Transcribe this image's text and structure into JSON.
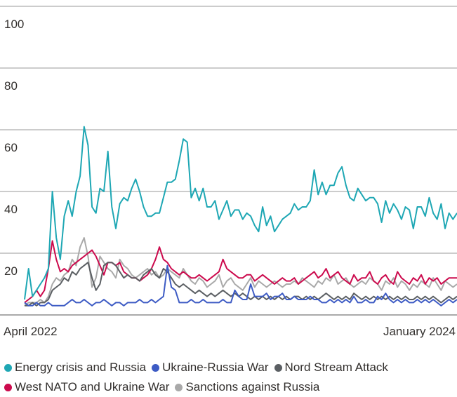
{
  "chart_data": {
    "type": "line",
    "categories": [
      "April 2022",
      null,
      null,
      null,
      null,
      null,
      null,
      null,
      null,
      null,
      null,
      null,
      null,
      null,
      null,
      null,
      null,
      null,
      null,
      null,
      null,
      null,
      null,
      null,
      null,
      null,
      null,
      null,
      null,
      null,
      null,
      null,
      null,
      null,
      null,
      null,
      null,
      null,
      null,
      null,
      null,
      null,
      null,
      null,
      null,
      null,
      null,
      null,
      null,
      null,
      null,
      null,
      null,
      null,
      null,
      null,
      null,
      null,
      null,
      null,
      null,
      null,
      null,
      null,
      null,
      null,
      null,
      null,
      null,
      null,
      null,
      null,
      null,
      null,
      null,
      null,
      null,
      null,
      null,
      null,
      null,
      null,
      null,
      null,
      null,
      null,
      null,
      null,
      null,
      null,
      null,
      null,
      null,
      null,
      null,
      null,
      null,
      null,
      null,
      null,
      null,
      null,
      null,
      null,
      null,
      null,
      null,
      null,
      null,
      "January 2024"
    ],
    "ylim": [
      0,
      100
    ],
    "yticks": [
      20,
      40,
      60,
      80,
      100
    ],
    "grid": true,
    "series": [
      {
        "name": "Energy crisis and Russia",
        "color": "#1ea7b4",
        "values": [
          5,
          15,
          6,
          8,
          10,
          12,
          15,
          40,
          25,
          18,
          32,
          37,
          32,
          40,
          45,
          61,
          55,
          35,
          33,
          41,
          40,
          53,
          35,
          28,
          36,
          38,
          37,
          41,
          44,
          40,
          35,
          32,
          32,
          33,
          33,
          38,
          43,
          43,
          44,
          50,
          57,
          56,
          38,
          41,
          37,
          41,
          35,
          35,
          37,
          31,
          34,
          37,
          32,
          34,
          34,
          31,
          33,
          32,
          29,
          27,
          35,
          29,
          32,
          27,
          29,
          31,
          32,
          33,
          36,
          34,
          35,
          35,
          37,
          47,
          39,
          43,
          39,
          42,
          42,
          46,
          48,
          42,
          38,
          37,
          41,
          39,
          37,
          38,
          38,
          36,
          30,
          37,
          33,
          36,
          34,
          31,
          35,
          34,
          28,
          35,
          35,
          32,
          38,
          33,
          31,
          36,
          28,
          33,
          31,
          33
        ]
      },
      {
        "name": "Ukraine-Russia War",
        "color": "#3d5bc4",
        "values": [
          4,
          3,
          3,
          4,
          3,
          3,
          4,
          3,
          3,
          3,
          3,
          4,
          5,
          4,
          4,
          5,
          4,
          3,
          4,
          4,
          5,
          4,
          3,
          4,
          4,
          3,
          4,
          4,
          4,
          5,
          4,
          4,
          5,
          4,
          5,
          6,
          16,
          9,
          8,
          4,
          4,
          4,
          5,
          4,
          4,
          5,
          4,
          4,
          4,
          4,
          5,
          4,
          4,
          8,
          6,
          5,
          5,
          10,
          6,
          6,
          6,
          7,
          5,
          6,
          6,
          7,
          5,
          5,
          6,
          5,
          5,
          5,
          6,
          5,
          5,
          4,
          4,
          5,
          4,
          5,
          4,
          5,
          4,
          6,
          4,
          4,
          5,
          4,
          4,
          6,
          5,
          7,
          5,
          4,
          5,
          4,
          5,
          4,
          4,
          5,
          4,
          5,
          4,
          5,
          4,
          3,
          4,
          5,
          4,
          5
        ]
      },
      {
        "name": "Nord Stream Attack",
        "color": "#5b5f63",
        "values": [
          3,
          3,
          4,
          3,
          4,
          4,
          5,
          8,
          9,
          10,
          12,
          11,
          14,
          13,
          15,
          16,
          17,
          12,
          8,
          10,
          16,
          17,
          17,
          16,
          14,
          12,
          13,
          12,
          12,
          11,
          13,
          14,
          15,
          13,
          12,
          15,
          14,
          12,
          10,
          9,
          10,
          9,
          8,
          7,
          8,
          7,
          6,
          7,
          6,
          7,
          8,
          7,
          6,
          7,
          6,
          7,
          6,
          5,
          6,
          5,
          6,
          5,
          6,
          5,
          6,
          5,
          6,
          5,
          6,
          6,
          5,
          6,
          5,
          6,
          5,
          6,
          7,
          6,
          5,
          6,
          5,
          6,
          5,
          7,
          6,
          5,
          6,
          5,
          6,
          5,
          6,
          5,
          6,
          5,
          6,
          5,
          6,
          5,
          5,
          6,
          5,
          6,
          5,
          6,
          5,
          4,
          5,
          6,
          5,
          6
        ]
      },
      {
        "name": "West NATO and Ukraine War",
        "color": "#cc0a4d",
        "values": [
          4,
          5,
          6,
          8,
          6,
          8,
          15,
          24,
          18,
          14,
          15,
          14,
          16,
          17,
          18,
          19,
          20,
          21,
          19,
          16,
          13,
          17,
          17,
          16,
          17,
          14,
          13,
          12,
          12,
          11,
          12,
          13,
          15,
          18,
          22,
          18,
          17,
          15,
          14,
          13,
          14,
          13,
          12,
          12,
          13,
          12,
          11,
          12,
          13,
          14,
          18,
          15,
          14,
          13,
          12,
          12,
          13,
          13,
          11,
          12,
          13,
          12,
          11,
          10,
          11,
          12,
          11,
          11,
          12,
          10,
          11,
          12,
          13,
          14,
          12,
          13,
          15,
          12,
          13,
          14,
          12,
          11,
          10,
          13,
          11,
          12,
          12,
          14,
          11,
          10,
          12,
          13,
          11,
          10,
          14,
          12,
          11,
          10,
          12,
          11,
          13,
          10,
          12,
          11,
          12,
          10,
          11,
          12,
          12,
          12
        ]
      },
      {
        "name": "Sanctions against Russia",
        "color": "#a9a9a9",
        "values": [
          3,
          4,
          4,
          4,
          5,
          4,
          6,
          10,
          12,
          11,
          13,
          14,
          18,
          16,
          22,
          25,
          19,
          9,
          12,
          19,
          17,
          15,
          14,
          12,
          18,
          16,
          15,
          13,
          12,
          13,
          14,
          15,
          13,
          14,
          12,
          13,
          15,
          14,
          13,
          12,
          15,
          13,
          11,
          10,
          12,
          11,
          9,
          10,
          11,
          13,
          9,
          11,
          12,
          10,
          9,
          8,
          10,
          12,
          9,
          11,
          10,
          9,
          10,
          11,
          10,
          9,
          10,
          10,
          11,
          10,
          12,
          11,
          10,
          9,
          11,
          10,
          12,
          11,
          13,
          10,
          11,
          12,
          10,
          9,
          10,
          11,
          10,
          12,
          11,
          10,
          8,
          11,
          10,
          12,
          9,
          11,
          10,
          8,
          10,
          9,
          11,
          10,
          9,
          12,
          10,
          8,
          11,
          10,
          9,
          10
        ]
      }
    ]
  }
}
